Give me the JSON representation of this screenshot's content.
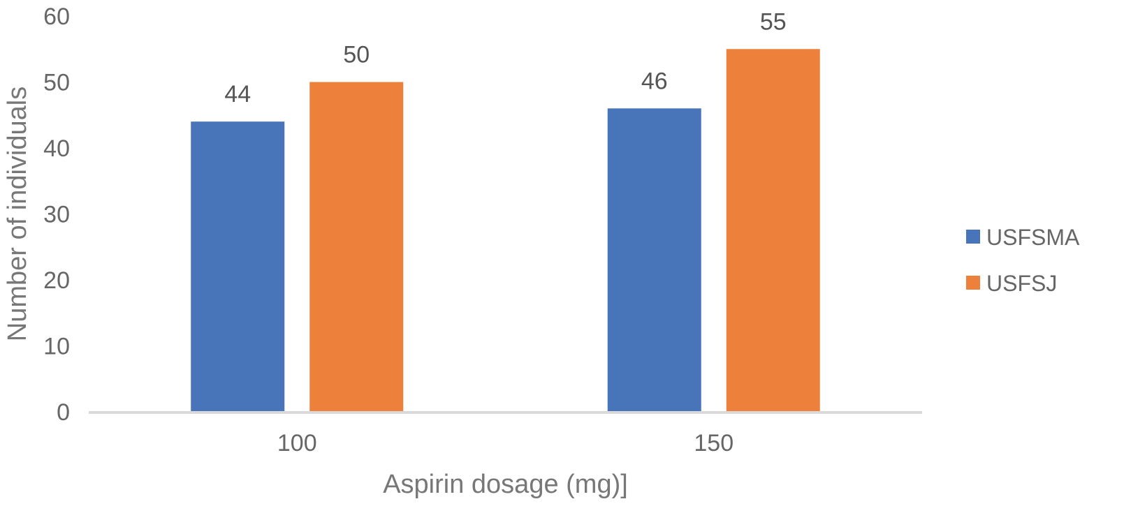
{
  "chart_data": {
    "type": "bar",
    "title": "",
    "xlabel": "Aspirin dosage (mg)]",
    "ylabel": "Number of individuals",
    "categories": [
      "100",
      "150"
    ],
    "series": [
      {
        "name": "USFSMA",
        "values": [
          44,
          46
        ],
        "color": "#4874BA"
      },
      {
        "name": "USFSJ",
        "values": [
          50,
          55
        ],
        "color": "#ED813C"
      }
    ],
    "ylim": [
      0,
      60
    ],
    "yticks": [
      0,
      10,
      20,
      30,
      40,
      50,
      60
    ],
    "grid": false,
    "legend_position": "right",
    "data_labels": true
  },
  "colors": {
    "axis_line": "#D9D9D9",
    "text": "#666666"
  }
}
